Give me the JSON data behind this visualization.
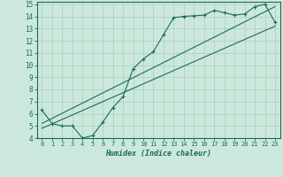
{
  "xlabel": "Humidex (Indice chaleur)",
  "bg_color": "#cce8dc",
  "grid_color": "#aacfbf",
  "line_color": "#1a6b5a",
  "xlim": [
    -0.5,
    23.5
  ],
  "ylim": [
    4,
    15.2
  ],
  "xticks": [
    0,
    1,
    2,
    3,
    4,
    5,
    6,
    7,
    8,
    9,
    10,
    11,
    12,
    13,
    14,
    15,
    16,
    17,
    18,
    19,
    20,
    21,
    22,
    23
  ],
  "yticks": [
    4,
    5,
    6,
    7,
    8,
    9,
    10,
    11,
    12,
    13,
    14,
    15
  ],
  "main_x": [
    0,
    1,
    2,
    3,
    4,
    5,
    6,
    7,
    8,
    9,
    10,
    11,
    12,
    13,
    14,
    15,
    16,
    17,
    18,
    19,
    20,
    21,
    22,
    23
  ],
  "main_y": [
    6.3,
    5.2,
    5.0,
    5.0,
    4.0,
    4.2,
    5.3,
    6.5,
    7.4,
    9.7,
    10.5,
    11.1,
    12.5,
    13.9,
    14.0,
    14.05,
    14.1,
    14.5,
    14.3,
    14.1,
    14.2,
    14.8,
    15.0,
    13.5
  ],
  "line1_x": [
    0,
    23
  ],
  "line1_y": [
    4.8,
    13.2
  ],
  "line2_x": [
    0,
    23
  ],
  "line2_y": [
    5.2,
    14.8
  ],
  "marker": "+"
}
